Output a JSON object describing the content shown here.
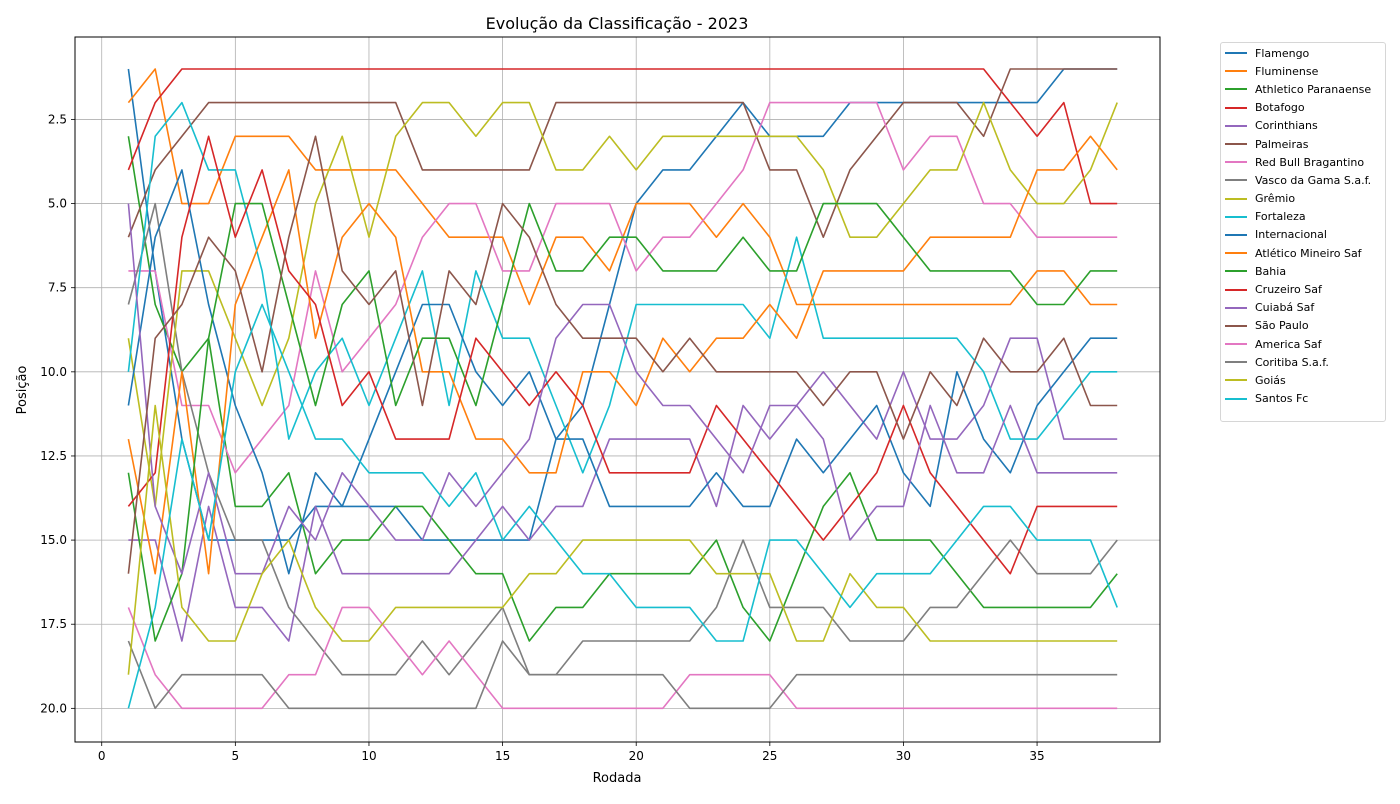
{
  "chart_data": {
    "type": "line",
    "title": "Evolução da Classificação - 2023",
    "xlabel": "Rodada",
    "ylabel": "Posição",
    "x_ticks": [
      "0",
      "5",
      "10",
      "15",
      "20",
      "25",
      "30",
      "35"
    ],
    "y_ticks": [
      "2.5",
      "5.0",
      "7.5",
      "10.0",
      "12.5",
      "15.0",
      "17.5",
      "20.0"
    ],
    "xlim": [
      -1,
      39.6
    ],
    "ylim": [
      21,
      0.05
    ],
    "y_inverted": true,
    "grid": true,
    "legend_position": "outside-right",
    "x": [
      1,
      2,
      3,
      4,
      5,
      6,
      7,
      8,
      9,
      10,
      11,
      12,
      13,
      14,
      15,
      16,
      17,
      18,
      19,
      20,
      21,
      22,
      23,
      24,
      25,
      26,
      27,
      28,
      29,
      30,
      31,
      32,
      33,
      34,
      35,
      36,
      37,
      38
    ],
    "series": [
      {
        "name": "Flamengo",
        "color": "#1f77b4",
        "values": [
          1,
          7,
          12,
          15,
          15,
          15,
          15,
          14,
          14,
          14,
          14,
          15,
          15,
          15,
          15,
          15,
          12,
          11,
          8,
          5,
          4,
          4,
          3,
          2,
          3,
          3,
          3,
          2,
          2,
          2,
          2,
          2,
          2,
          2,
          2,
          1,
          1,
          1
        ]
      },
      {
        "name": "Fluminense",
        "color": "#ff7f0e",
        "values": [
          2,
          1,
          5,
          5,
          3,
          3,
          3,
          4,
          4,
          4,
          4,
          5,
          6,
          6,
          6,
          8,
          6,
          6,
          7,
          5,
          5,
          5,
          6,
          5,
          6,
          8,
          8,
          8,
          8,
          8,
          8,
          8,
          8,
          8,
          7,
          7,
          8,
          8
        ]
      },
      {
        "name": "Athletico Paranaense",
        "color": "#2ca02c",
        "values": [
          3,
          8,
          10,
          9,
          14,
          14,
          13,
          16,
          15,
          15,
          14,
          14,
          15,
          16,
          16,
          18,
          17,
          17,
          16,
          16,
          16,
          16,
          15,
          17,
          18,
          16,
          14,
          13,
          15,
          15,
          15,
          16,
          17,
          17,
          17,
          17,
          17,
          16
        ]
      },
      {
        "name": "Botafogo",
        "color": "#d62728",
        "values": [
          4,
          2,
          1,
          1,
          1,
          1,
          1,
          1,
          1,
          1,
          1,
          1,
          1,
          1,
          1,
          1,
          1,
          1,
          1,
          1,
          1,
          1,
          1,
          1,
          1,
          1,
          1,
          1,
          1,
          1,
          1,
          1,
          1,
          2,
          3,
          2,
          5,
          5
        ]
      },
      {
        "name": "Corinthians",
        "color": "#9467bd",
        "values": [
          15,
          15,
          18,
          14,
          17,
          17,
          18,
          14,
          16,
          16,
          16,
          16,
          16,
          15,
          14,
          15,
          14,
          14,
          12,
          12,
          12,
          12,
          14,
          11,
          12,
          11,
          10,
          11,
          12,
          10,
          12,
          12,
          11,
          9,
          9,
          12,
          12,
          12
        ]
      },
      {
        "name": "Palmeiras",
        "color": "#8c564b",
        "values": [
          6,
          4,
          3,
          2,
          2,
          2,
          2,
          2,
          2,
          2,
          2,
          4,
          4,
          4,
          4,
          4,
          2,
          2,
          2,
          2,
          2,
          2,
          2,
          2,
          4,
          4,
          6,
          4,
          3,
          2,
          2,
          2,
          3,
          1,
          1,
          1,
          1,
          1
        ]
      },
      {
        "name": "Red Bull Bragantino",
        "color": "#e377c2",
        "values": [
          7,
          7,
          11,
          11,
          13,
          12,
          11,
          7,
          10,
          9,
          8,
          6,
          5,
          5,
          7,
          7,
          5,
          5,
          5,
          7,
          6,
          6,
          5,
          4,
          2,
          2,
          2,
          2,
          2,
          4,
          3,
          3,
          5,
          5,
          6,
          6,
          6,
          6
        ]
      },
      {
        "name": "Vasco da Gama S.a.f.",
        "color": "#7f7f7f",
        "values": [
          8,
          5,
          10,
          13,
          15,
          15,
          17,
          18,
          19,
          19,
          19,
          18,
          19,
          18,
          17,
          19,
          19,
          18,
          18,
          18,
          18,
          18,
          17,
          15,
          17,
          17,
          17,
          18,
          18,
          18,
          17,
          17,
          16,
          15,
          16,
          16,
          16,
          15
        ]
      },
      {
        "name": "Grêmio",
        "color": "#bcbd22",
        "values": [
          9,
          14,
          7,
          7,
          9,
          11,
          9,
          5,
          3,
          6,
          3,
          2,
          2,
          3,
          2,
          2,
          4,
          4,
          3,
          4,
          3,
          3,
          3,
          3,
          3,
          3,
          4,
          6,
          6,
          5,
          4,
          4,
          2,
          4,
          5,
          5,
          4,
          2
        ]
      },
      {
        "name": "Fortaleza",
        "color": "#17becf",
        "values": [
          10,
          3,
          2,
          4,
          4,
          7,
          12,
          10,
          9,
          11,
          9,
          7,
          11,
          7,
          9,
          9,
          11,
          13,
          11,
          8,
          8,
          8,
          8,
          8,
          9,
          6,
          9,
          9,
          9,
          9,
          9,
          9,
          10,
          12,
          12,
          11,
          10,
          10
        ]
      },
      {
        "name": "Internacional",
        "color": "#1f77b4",
        "values": [
          11,
          6,
          4,
          8,
          11,
          13,
          16,
          13,
          14,
          12,
          10,
          8,
          8,
          10,
          11,
          10,
          12,
          12,
          14,
          14,
          14,
          14,
          13,
          14,
          14,
          12,
          13,
          12,
          11,
          13,
          14,
          10,
          12,
          13,
          11,
          10,
          9,
          9
        ]
      },
      {
        "name": "Atlético Mineiro Saf",
        "color": "#ff7f0e",
        "values": [
          12,
          16,
          10,
          16,
          8,
          6,
          4,
          9,
          6,
          5,
          6,
          10,
          10,
          12,
          12,
          13,
          13,
          10,
          10,
          11,
          9,
          10,
          9,
          9,
          8,
          9,
          7,
          7,
          7,
          7,
          6,
          6,
          6,
          6,
          4,
          4,
          3,
          4
        ]
      },
      {
        "name": "Bahia",
        "color": "#2ca02c",
        "values": [
          13,
          18,
          16,
          9,
          5,
          5,
          8,
          11,
          8,
          7,
          11,
          9,
          9,
          11,
          8,
          5,
          7,
          7,
          6,
          6,
          7,
          7,
          7,
          6,
          7,
          7,
          5,
          5,
          5,
          6,
          7,
          7,
          7,
          7,
          8,
          8,
          7,
          7
        ]
      },
      {
        "name": "Cruzeiro Saf",
        "color": "#d62728",
        "values": [
          14,
          13,
          6,
          3,
          6,
          4,
          7,
          8,
          11,
          10,
          12,
          12,
          12,
          9,
          10,
          11,
          10,
          11,
          13,
          13,
          13,
          13,
          11,
          12,
          13,
          14,
          15,
          14,
          13,
          11,
          13,
          14,
          15,
          16,
          14,
          14,
          14,
          14
        ]
      },
      {
        "name": "Cuiabá Saf",
        "color": "#9467bd",
        "values": [
          5,
          14,
          16,
          13,
          16,
          16,
          14,
          15,
          13,
          14,
          15,
          15,
          13,
          14,
          13,
          12,
          9,
          8,
          8,
          10,
          11,
          11,
          12,
          13,
          11,
          11,
          12,
          15,
          14,
          14,
          11,
          13,
          13,
          11,
          13,
          13,
          13,
          13
        ]
      },
      {
        "name": "São Paulo",
        "color": "#8c564b",
        "values": [
          16,
          9,
          8,
          6,
          7,
          10,
          6,
          3,
          7,
          8,
          7,
          11,
          7,
          8,
          5,
          6,
          8,
          9,
          9,
          9,
          10,
          9,
          10,
          10,
          10,
          10,
          11,
          10,
          10,
          12,
          10,
          11,
          9,
          10,
          10,
          9,
          11,
          11
        ]
      },
      {
        "name": "America Saf",
        "color": "#e377c2",
        "values": [
          17,
          19,
          20,
          20,
          20,
          20,
          19,
          19,
          17,
          17,
          18,
          19,
          18,
          19,
          20,
          20,
          20,
          20,
          20,
          20,
          20,
          19,
          19,
          19,
          19,
          20,
          20,
          20,
          20,
          20,
          20,
          20,
          20,
          20,
          20,
          20,
          20,
          20
        ]
      },
      {
        "name": "Coritiba S.a.f.",
        "color": "#7f7f7f",
        "values": [
          18,
          20,
          19,
          19,
          19,
          19,
          20,
          20,
          20,
          20,
          20,
          20,
          20,
          20,
          18,
          19,
          19,
          19,
          19,
          19,
          19,
          20,
          20,
          20,
          20,
          19,
          19,
          19,
          19,
          19,
          19,
          19,
          19,
          19,
          19,
          19,
          19,
          19
        ]
      },
      {
        "name": "Goiás",
        "color": "#bcbd22",
        "values": [
          19,
          11,
          17,
          18,
          18,
          16,
          15,
          17,
          18,
          18,
          17,
          17,
          17,
          17,
          17,
          16,
          16,
          15,
          15,
          15,
          15,
          15,
          16,
          16,
          16,
          18,
          18,
          16,
          17,
          17,
          18,
          18,
          18,
          18,
          18,
          18,
          18,
          18
        ]
      },
      {
        "name": "Santos Fc",
        "color": "#17becf",
        "values": [
          20,
          17,
          12,
          15,
          10,
          8,
          10,
          12,
          12,
          13,
          13,
          13,
          14,
          13,
          15,
          14,
          15,
          16,
          16,
          17,
          17,
          17,
          18,
          18,
          15,
          15,
          16,
          17,
          16,
          16,
          16,
          15,
          14,
          14,
          15,
          15,
          15,
          17
        ]
      }
    ]
  }
}
